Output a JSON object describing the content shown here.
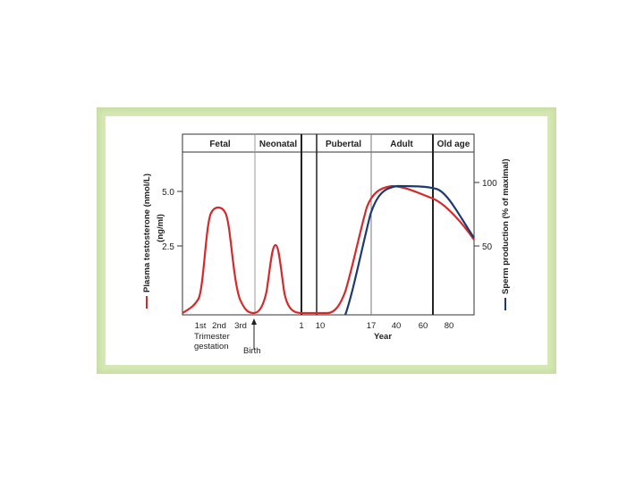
{
  "chart_data": {
    "type": "line",
    "stages": [
      "Fetal",
      "Neonatal",
      "Pubertal",
      "Adult",
      "Old age"
    ],
    "ylabel_left": "Plasma testosterone (nmol/L) (ng/ml)",
    "ylabel_right": "Sperm production (% of maximal)",
    "y_left_ticks": [
      "5.0",
      "2.5"
    ],
    "y_right_ticks": [
      "100",
      "50"
    ],
    "x_ticks": [
      "1st",
      "2nd",
      "3rd",
      "1",
      "10",
      "17",
      "40",
      "60",
      "80"
    ],
    "x_note_trimester": [
      "Trimester",
      "gestation"
    ],
    "x_note_birth": "Birth",
    "xlabel": "Year",
    "ylim_left": [
      0,
      7.2
    ],
    "ylim_right": [
      0,
      130
    ],
    "series": [
      {
        "color": "#d42a2a",
        "axis": "left",
        "points": [
          [
            "start",
            0.1
          ],
          [
            "1st",
            0.8
          ],
          [
            "early 2nd",
            3.6
          ],
          [
            "2nd",
            4.1
          ],
          [
            "late 2nd",
            3.4
          ],
          [
            "3rd",
            0.3
          ],
          [
            "birth",
            0.05
          ],
          [
            "neonatal peak",
            2.6
          ],
          [
            "pre-1",
            0.1
          ],
          [
            "1",
            0.1
          ],
          [
            "10",
            0.1
          ],
          [
            "17",
            4.2
          ],
          [
            "40",
            5.1
          ],
          [
            "60",
            4.8
          ],
          [
            "80",
            3.6
          ],
          [
            "end",
            3.1
          ]
        ]
      },
      {
        "color": "#1c3a72",
        "axis": "right",
        "points": [
          [
            "pre-17",
            0
          ],
          [
            "17",
            72
          ],
          [
            "40",
            102
          ],
          [
            "60",
            100
          ],
          [
            "80",
            74
          ],
          [
            "end",
            56
          ]
        ]
      }
    ]
  }
}
